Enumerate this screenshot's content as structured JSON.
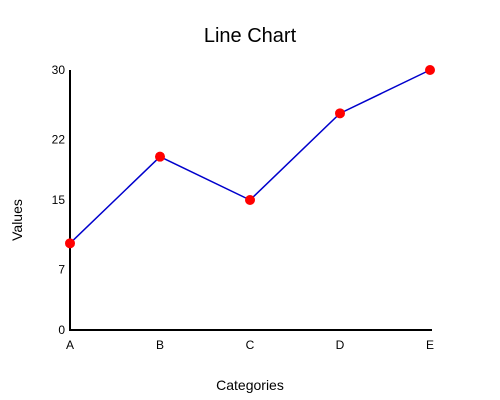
{
  "chart_data": {
    "type": "line",
    "title": "Line Chart",
    "xlabel": "Categories",
    "ylabel": "Values",
    "categories": [
      "A",
      "B",
      "C",
      "D",
      "E"
    ],
    "series": [
      {
        "values": [
          10,
          20,
          15,
          25,
          30
        ],
        "line_color": "#0000cc",
        "marker_color": "#ff0000"
      }
    ],
    "yticks": [
      0,
      7,
      15,
      22,
      30
    ],
    "ytick_labels": [
      "0",
      "7",
      "15",
      "22",
      "30"
    ],
    "ylim": [
      0,
      30
    ],
    "grid": false,
    "legend": "none",
    "axis_color": "#000000"
  }
}
